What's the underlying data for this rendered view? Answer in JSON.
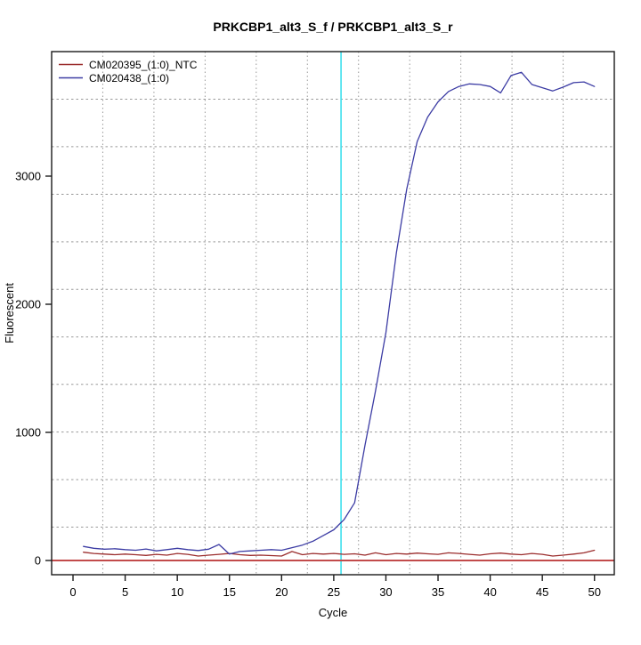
{
  "chart_data": {
    "type": "line",
    "title": "PRKCBP1_alt3_S_f / PRKCBP1_alt3_S_r",
    "xlabel": "Cycle",
    "ylabel": "Fluorescent",
    "xlim": [
      -2.05,
      51.9
    ],
    "ylim": [
      -111,
      3972
    ],
    "xticks": [
      0,
      5,
      10,
      15,
      20,
      25,
      30,
      35,
      40,
      45,
      50
    ],
    "yticks": [
      0,
      1000,
      2000,
      3000
    ],
    "grid": {
      "nx": 11,
      "ny": 11,
      "style": "dotted",
      "color": "#9a9a9a"
    },
    "legend_position": "top-left",
    "x": [
      1,
      2,
      3,
      4,
      5,
      6,
      7,
      8,
      9,
      10,
      11,
      12,
      13,
      14,
      15,
      16,
      17,
      18,
      19,
      20,
      21,
      22,
      23,
      24,
      25,
      26,
      27,
      28,
      29,
      30,
      31,
      32,
      33,
      34,
      35,
      36,
      37,
      38,
      39,
      40,
      41,
      42,
      43,
      44,
      45,
      46,
      47,
      48,
      49,
      50
    ],
    "series": [
      {
        "name": "CM020395_(1:0)_NTC",
        "color": "#9b2d2d",
        "values": [
          65,
          55,
          50,
          45,
          50,
          45,
          40,
          48,
          42,
          55,
          48,
          35,
          42,
          48,
          55,
          45,
          40,
          42,
          38,
          35,
          70,
          45,
          55,
          50,
          55,
          48,
          52,
          42,
          60,
          45,
          55,
          50,
          58,
          52,
          48,
          60,
          55,
          48,
          42,
          52,
          58,
          50,
          45,
          55,
          48,
          35,
          42,
          50,
          60,
          80
        ]
      },
      {
        "name": "CM020438_(1:0)",
        "color": "#3c3ca4",
        "values": [
          110,
          95,
          88,
          92,
          85,
          80,
          90,
          75,
          85,
          95,
          85,
          78,
          88,
          125,
          50,
          70,
          75,
          80,
          85,
          80,
          100,
          120,
          150,
          195,
          240,
          320,
          450,
          900,
          1320,
          1780,
          2400,
          2900,
          3270,
          3460,
          3580,
          3660,
          3700,
          3720,
          3715,
          3700,
          3650,
          3785,
          3810,
          3715,
          3690,
          3665,
          3695,
          3730,
          3735,
          3700
        ]
      }
    ],
    "threshold_line": {
      "value": 0,
      "color": "#c24b4b"
    },
    "ct_line": {
      "cycle": 25.7,
      "color": "#3fe0ee"
    },
    "axis_color": "#1a1a1a"
  }
}
